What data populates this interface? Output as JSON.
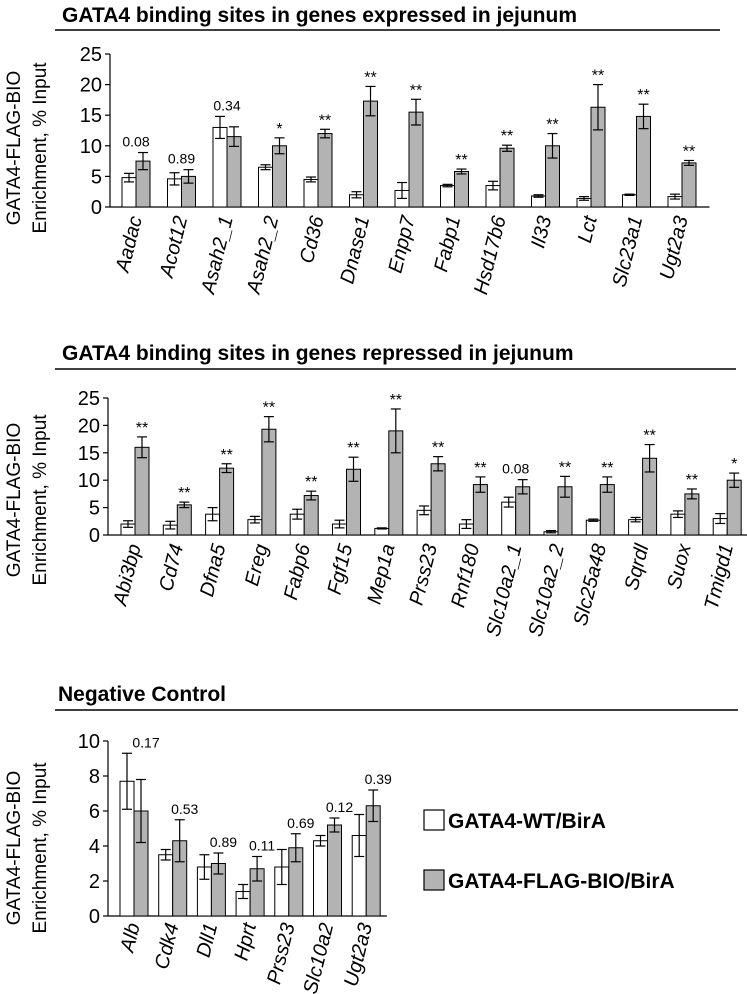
{
  "legend": {
    "items": [
      {
        "label": "GATA4-WT/BirA",
        "color": "#ffffff"
      },
      {
        "label": "GATA4-FLAG-BIO/BirA",
        "color": "#b3b3b3"
      }
    ]
  },
  "chart_data": [
    {
      "type": "bar",
      "title": "GATA4 binding sites in genes expressed in jejunum",
      "ylabel": [
        "GATA4-FLAG-BIO",
        "Enrichment, % Input"
      ],
      "ylim": [
        0,
        25
      ],
      "yticks": [
        0,
        5,
        10,
        15,
        20,
        25
      ],
      "legend": "none",
      "categories": [
        "Aadac",
        "Acot12",
        "Asah2_1",
        "Asah2_2",
        "Cd36",
        "Dnase1",
        "Enpp7",
        "Fabp1",
        "Hsd17b6",
        "Il33",
        "Lct",
        "Slc23a1",
        "Ugt2a3"
      ],
      "series": [
        {
          "name": "GATA4-WT/BirA",
          "values": [
            4.8,
            4.6,
            13.0,
            6.5,
            4.5,
            2.0,
            2.7,
            3.5,
            3.5,
            1.8,
            1.4,
            2.0,
            1.7
          ],
          "errors": [
            0.7,
            1.0,
            1.8,
            0.4,
            0.4,
            0.5,
            1.3,
            0.2,
            0.7,
            0.2,
            0.3,
            0.1,
            0.4
          ]
        },
        {
          "name": "GATA4-FLAG-BIO/BirA",
          "values": [
            7.5,
            5.0,
            11.5,
            10.0,
            12.0,
            17.3,
            15.5,
            5.8,
            9.6,
            10.0,
            16.3,
            14.8,
            7.2
          ],
          "errors": [
            1.4,
            1.1,
            1.6,
            1.3,
            0.7,
            2.4,
            2.1,
            0.4,
            0.5,
            2.0,
            3.7,
            2.0,
            0.4
          ]
        }
      ],
      "annotations": [
        "0.08",
        "0.89",
        "0.34",
        "*",
        "**",
        "**",
        "**",
        "**",
        "**",
        "**",
        "**",
        "**",
        "**"
      ]
    },
    {
      "type": "bar",
      "title": "GATA4 binding sites in genes repressed in jejunum",
      "ylabel": [
        "GATA4-FLAG-BIO",
        "Enrichment, % Input"
      ],
      "ylim": [
        0,
        25
      ],
      "yticks": [
        0,
        5,
        10,
        15,
        20,
        25
      ],
      "legend": "none",
      "categories": [
        "Abi3bp",
        "Cd74",
        "Dfna5",
        "Ereg",
        "Fabp6",
        "Fgf15",
        "Mep1a",
        "Prss23",
        "Rnf180",
        "Slc10a2_1",
        "Slc10a2_2",
        "Slc25a48",
        "Sqrdl",
        "Suox",
        "Tmigd1"
      ],
      "series": [
        {
          "name": "GATA4-WT/BirA",
          "values": [
            2.0,
            1.8,
            3.8,
            2.8,
            3.8,
            2.0,
            1.2,
            4.5,
            2.0,
            6.0,
            0.6,
            2.7,
            2.8,
            3.8,
            3.0
          ],
          "errors": [
            0.6,
            0.7,
            1.2,
            0.6,
            0.9,
            0.7,
            0.1,
            0.8,
            0.8,
            0.9,
            0.2,
            0.2,
            0.4,
            0.6,
            0.9
          ]
        },
        {
          "name": "GATA4-FLAG-BIO/BirA",
          "values": [
            16.0,
            5.5,
            12.2,
            19.3,
            7.2,
            12.0,
            19.0,
            13.0,
            9.2,
            8.8,
            8.8,
            9.2,
            14.0,
            7.5,
            10.0
          ],
          "errors": [
            1.9,
            0.5,
            0.8,
            2.3,
            0.8,
            2.2,
            4.0,
            1.3,
            1.4,
            1.3,
            1.9,
            1.4,
            2.5,
            0.9,
            1.3
          ]
        }
      ],
      "annotations": [
        "**",
        "**",
        "**",
        "**",
        "**",
        "**",
        "**",
        "**",
        "**",
        "0.08",
        "**",
        "**",
        "**",
        "**",
        "*"
      ]
    },
    {
      "type": "bar",
      "title": "Negative Control",
      "ylabel": [
        "GATA4-FLAG-BIO",
        "Enrichment, % Input"
      ],
      "ylim": [
        0,
        10
      ],
      "yticks": [
        0,
        2,
        4,
        6,
        8,
        10
      ],
      "legend": "right",
      "categories": [
        "Alb",
        "Cdk4",
        "Dll1",
        "Hprt",
        "Prss23",
        "Slc10a2",
        "Ugt2a3"
      ],
      "series": [
        {
          "name": "GATA4-WT/BirA",
          "values": [
            7.7,
            3.5,
            2.8,
            1.4,
            2.8,
            4.3,
            4.6
          ],
          "errors": [
            1.6,
            0.3,
            0.7,
            0.4,
            1.0,
            0.3,
            1.2
          ]
        },
        {
          "name": "GATA4-FLAG-BIO/BirA",
          "values": [
            6.0,
            4.3,
            3.0,
            2.7,
            3.9,
            5.2,
            6.3
          ],
          "errors": [
            1.8,
            1.2,
            0.6,
            0.7,
            0.8,
            0.4,
            0.9
          ]
        }
      ],
      "annotations": [
        "0.17",
        "0.53",
        "0.89",
        "0.11",
        "0.69",
        "0.12",
        "0.39"
      ]
    }
  ]
}
